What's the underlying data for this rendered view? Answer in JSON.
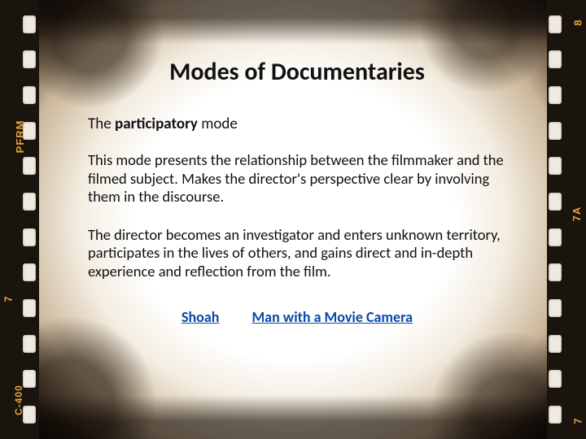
{
  "title": "Modes of Documentaries",
  "subhead_pre": "The ",
  "subhead_bold": "participatory",
  "subhead_post": " mode",
  "para1": "This mode presents the relationship between the filmmaker and the filmed subject. Makes the director's perspective clear by involving them in the discourse.",
  "para2": "The director becomes an investigator and enters unknown territory, participates in the lives of others, and gains direct and in-depth experience and reflection from the film.",
  "link1": "Shoah",
  "link2": "Man with a Movie Camera",
  "edge": {
    "pfrm": "PFRM",
    "seven": "7",
    "c400": "C-400",
    "eight": "8",
    "sevenA": "7A",
    "sevenR": "7"
  },
  "colors": {
    "accent": "#e8a23a",
    "link": "#0a4aa8"
  }
}
